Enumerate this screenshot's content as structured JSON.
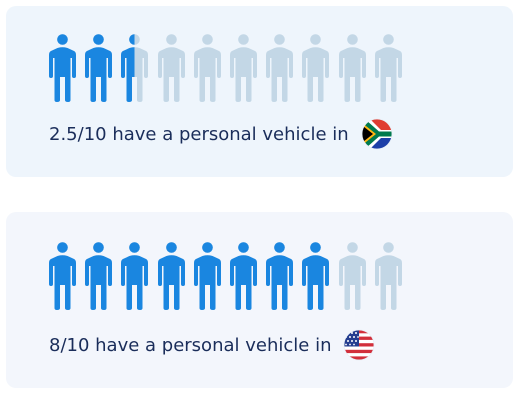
{
  "colors": {
    "filled": "#1a86e0",
    "empty": "#c3d7e6",
    "text": "#1a2d5a"
  },
  "icon_name": "person-icon",
  "stats": [
    {
      "value": 2.5,
      "total": 10,
      "caption": "2.5/10 have a personal vehicle in",
      "flag_icon": "south-africa-flag-icon"
    },
    {
      "value": 8,
      "total": 10,
      "caption": "8/10 have a personal vehicle in",
      "flag_icon": "usa-flag-icon"
    }
  ]
}
